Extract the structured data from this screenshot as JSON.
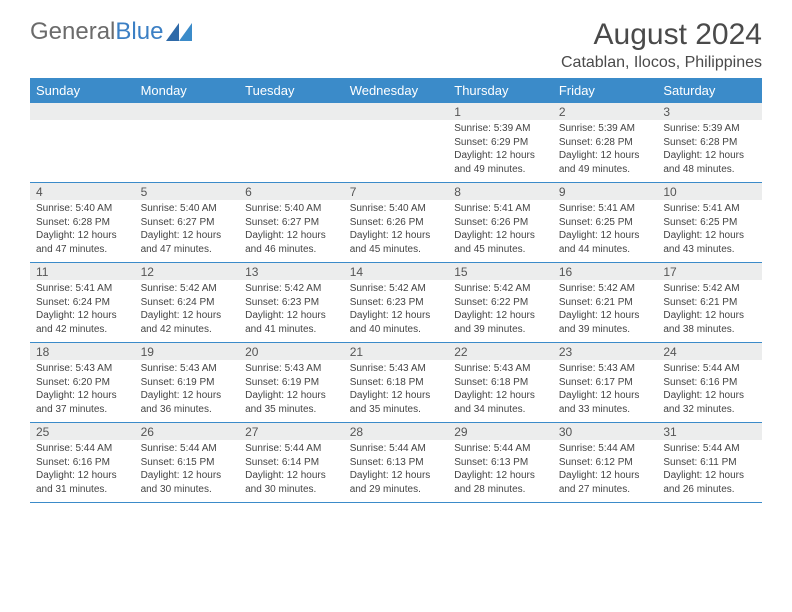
{
  "logo": {
    "textGray": "General",
    "textBlue": "Blue"
  },
  "title": "August 2024",
  "location": "Catablan, Ilocos, Philippines",
  "colors": {
    "headerBlue": "#3b8bc9",
    "rowGray": "#eceded",
    "textDark": "#4a4a4a",
    "logoGray": "#6b6b6b",
    "logoBlue": "#3b7fc4"
  },
  "daysOfWeek": [
    "Sunday",
    "Monday",
    "Tuesday",
    "Wednesday",
    "Thursday",
    "Friday",
    "Saturday"
  ],
  "weeks": [
    [
      null,
      null,
      null,
      null,
      {
        "n": "1",
        "sunrise": "Sunrise: 5:39 AM",
        "sunset": "Sunset: 6:29 PM",
        "daylight": "Daylight: 12 hours and 49 minutes."
      },
      {
        "n": "2",
        "sunrise": "Sunrise: 5:39 AM",
        "sunset": "Sunset: 6:28 PM",
        "daylight": "Daylight: 12 hours and 49 minutes."
      },
      {
        "n": "3",
        "sunrise": "Sunrise: 5:39 AM",
        "sunset": "Sunset: 6:28 PM",
        "daylight": "Daylight: 12 hours and 48 minutes."
      }
    ],
    [
      {
        "n": "4",
        "sunrise": "Sunrise: 5:40 AM",
        "sunset": "Sunset: 6:28 PM",
        "daylight": "Daylight: 12 hours and 47 minutes."
      },
      {
        "n": "5",
        "sunrise": "Sunrise: 5:40 AM",
        "sunset": "Sunset: 6:27 PM",
        "daylight": "Daylight: 12 hours and 47 minutes."
      },
      {
        "n": "6",
        "sunrise": "Sunrise: 5:40 AM",
        "sunset": "Sunset: 6:27 PM",
        "daylight": "Daylight: 12 hours and 46 minutes."
      },
      {
        "n": "7",
        "sunrise": "Sunrise: 5:40 AM",
        "sunset": "Sunset: 6:26 PM",
        "daylight": "Daylight: 12 hours and 45 minutes."
      },
      {
        "n": "8",
        "sunrise": "Sunrise: 5:41 AM",
        "sunset": "Sunset: 6:26 PM",
        "daylight": "Daylight: 12 hours and 45 minutes."
      },
      {
        "n": "9",
        "sunrise": "Sunrise: 5:41 AM",
        "sunset": "Sunset: 6:25 PM",
        "daylight": "Daylight: 12 hours and 44 minutes."
      },
      {
        "n": "10",
        "sunrise": "Sunrise: 5:41 AM",
        "sunset": "Sunset: 6:25 PM",
        "daylight": "Daylight: 12 hours and 43 minutes."
      }
    ],
    [
      {
        "n": "11",
        "sunrise": "Sunrise: 5:41 AM",
        "sunset": "Sunset: 6:24 PM",
        "daylight": "Daylight: 12 hours and 42 minutes."
      },
      {
        "n": "12",
        "sunrise": "Sunrise: 5:42 AM",
        "sunset": "Sunset: 6:24 PM",
        "daylight": "Daylight: 12 hours and 42 minutes."
      },
      {
        "n": "13",
        "sunrise": "Sunrise: 5:42 AM",
        "sunset": "Sunset: 6:23 PM",
        "daylight": "Daylight: 12 hours and 41 minutes."
      },
      {
        "n": "14",
        "sunrise": "Sunrise: 5:42 AM",
        "sunset": "Sunset: 6:23 PM",
        "daylight": "Daylight: 12 hours and 40 minutes."
      },
      {
        "n": "15",
        "sunrise": "Sunrise: 5:42 AM",
        "sunset": "Sunset: 6:22 PM",
        "daylight": "Daylight: 12 hours and 39 minutes."
      },
      {
        "n": "16",
        "sunrise": "Sunrise: 5:42 AM",
        "sunset": "Sunset: 6:21 PM",
        "daylight": "Daylight: 12 hours and 39 minutes."
      },
      {
        "n": "17",
        "sunrise": "Sunrise: 5:42 AM",
        "sunset": "Sunset: 6:21 PM",
        "daylight": "Daylight: 12 hours and 38 minutes."
      }
    ],
    [
      {
        "n": "18",
        "sunrise": "Sunrise: 5:43 AM",
        "sunset": "Sunset: 6:20 PM",
        "daylight": "Daylight: 12 hours and 37 minutes."
      },
      {
        "n": "19",
        "sunrise": "Sunrise: 5:43 AM",
        "sunset": "Sunset: 6:19 PM",
        "daylight": "Daylight: 12 hours and 36 minutes."
      },
      {
        "n": "20",
        "sunrise": "Sunrise: 5:43 AM",
        "sunset": "Sunset: 6:19 PM",
        "daylight": "Daylight: 12 hours and 35 minutes."
      },
      {
        "n": "21",
        "sunrise": "Sunrise: 5:43 AM",
        "sunset": "Sunset: 6:18 PM",
        "daylight": "Daylight: 12 hours and 35 minutes."
      },
      {
        "n": "22",
        "sunrise": "Sunrise: 5:43 AM",
        "sunset": "Sunset: 6:18 PM",
        "daylight": "Daylight: 12 hours and 34 minutes."
      },
      {
        "n": "23",
        "sunrise": "Sunrise: 5:43 AM",
        "sunset": "Sunset: 6:17 PM",
        "daylight": "Daylight: 12 hours and 33 minutes."
      },
      {
        "n": "24",
        "sunrise": "Sunrise: 5:44 AM",
        "sunset": "Sunset: 6:16 PM",
        "daylight": "Daylight: 12 hours and 32 minutes."
      }
    ],
    [
      {
        "n": "25",
        "sunrise": "Sunrise: 5:44 AM",
        "sunset": "Sunset: 6:16 PM",
        "daylight": "Daylight: 12 hours and 31 minutes."
      },
      {
        "n": "26",
        "sunrise": "Sunrise: 5:44 AM",
        "sunset": "Sunset: 6:15 PM",
        "daylight": "Daylight: 12 hours and 30 minutes."
      },
      {
        "n": "27",
        "sunrise": "Sunrise: 5:44 AM",
        "sunset": "Sunset: 6:14 PM",
        "daylight": "Daylight: 12 hours and 30 minutes."
      },
      {
        "n": "28",
        "sunrise": "Sunrise: 5:44 AM",
        "sunset": "Sunset: 6:13 PM",
        "daylight": "Daylight: 12 hours and 29 minutes."
      },
      {
        "n": "29",
        "sunrise": "Sunrise: 5:44 AM",
        "sunset": "Sunset: 6:13 PM",
        "daylight": "Daylight: 12 hours and 28 minutes."
      },
      {
        "n": "30",
        "sunrise": "Sunrise: 5:44 AM",
        "sunset": "Sunset: 6:12 PM",
        "daylight": "Daylight: 12 hours and 27 minutes."
      },
      {
        "n": "31",
        "sunrise": "Sunrise: 5:44 AM",
        "sunset": "Sunset: 6:11 PM",
        "daylight": "Daylight: 12 hours and 26 minutes."
      }
    ]
  ]
}
